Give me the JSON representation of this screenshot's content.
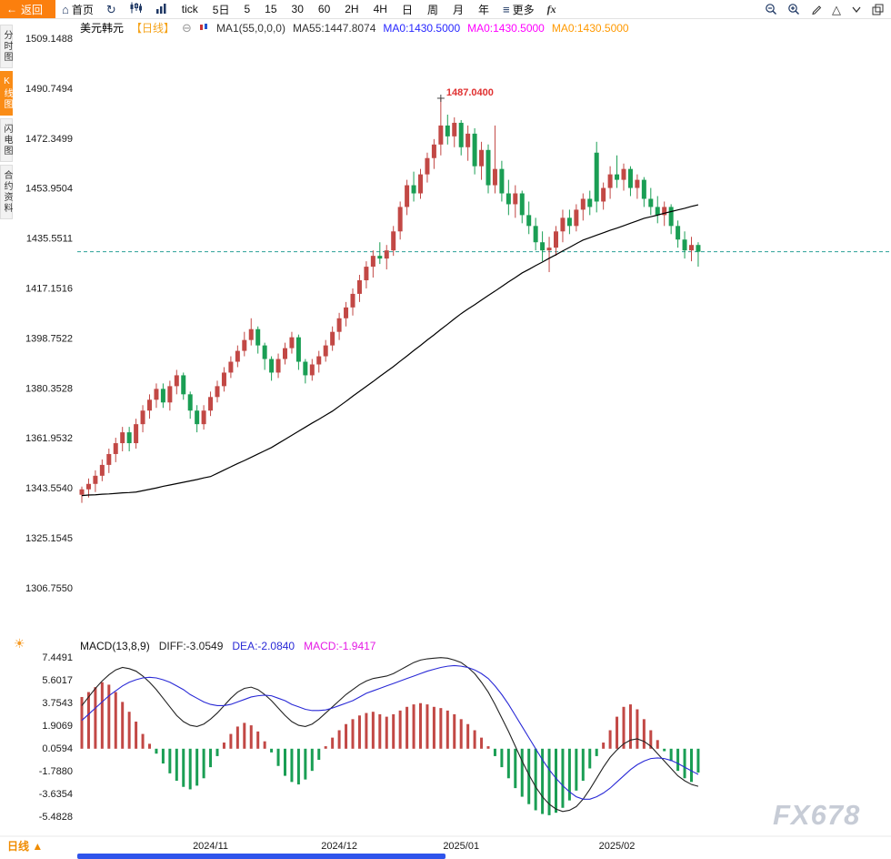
{
  "toolbar": {
    "back_label": "返回",
    "home_label": "首页",
    "periods": [
      "tick",
      "5日",
      "5",
      "15",
      "30",
      "60",
      "2H",
      "4H",
      "日",
      "周",
      "月",
      "年"
    ],
    "more_label": "更多",
    "fx_label": "fx"
  },
  "sidebar": {
    "items": [
      {
        "label": "分时图",
        "active": false
      },
      {
        "label": "K线图",
        "active": true
      },
      {
        "label": "闪电图",
        "active": false
      },
      {
        "label": "合约资料",
        "active": false
      }
    ]
  },
  "chart_header": {
    "symbol": "美元韩元",
    "period": "【日线】",
    "collapse_icon": "⊖",
    "ma_settings": "MA1(55,0,0,0)",
    "ma55": "MA55:1447.8074",
    "ma0_blue": "MA0:1430.5000",
    "ma0_magenta": "MA0:1430.5000",
    "ma0_orange": "MA0:1430.5000"
  },
  "macd_header": {
    "title": "MACD(13,8,9)",
    "diff": "DIFF:-3.0549",
    "dea": "DEA:-2.0840",
    "macd": "MACD:-1.9417"
  },
  "bottom": {
    "tab_label": "日线",
    "tab_arrow": "▲",
    "watermark": "FX678"
  },
  "chart_data": {
    "type": "candlestick+macd",
    "title": "美元韩元 日线 (USD/KRW Daily)",
    "price_axis_labels": [
      "1509.1488",
      "1490.7494",
      "1472.3499",
      "1453.9504",
      "1435.5511",
      "1417.1516",
      "1398.7522",
      "1380.3528",
      "1361.9532",
      "1343.5540",
      "1325.1545",
      "1306.7550"
    ],
    "macd_axis_labels": [
      "7.4491",
      "5.6017",
      "3.7543",
      "1.9069",
      "0.0594",
      "-1.7880",
      "-3.6354",
      "-5.4828"
    ],
    "x_axis_labels": [
      {
        "label": "2024/11",
        "index": 19
      },
      {
        "label": "2024/12",
        "index": 38
      },
      {
        "label": "2025/01",
        "index": 56
      },
      {
        "label": "2025/02",
        "index": 79
      }
    ],
    "last_price": 1430.5,
    "peak_annotation": {
      "text": "1487.0400",
      "price": 1487.04,
      "index": 53
    },
    "candles": [
      [
        1341,
        1344,
        1338,
        1343
      ],
      [
        1343,
        1347,
        1340,
        1345
      ],
      [
        1345,
        1350,
        1342,
        1348
      ],
      [
        1348,
        1354,
        1346,
        1352
      ],
      [
        1352,
        1358,
        1349,
        1356
      ],
      [
        1356,
        1362,
        1353,
        1360
      ],
      [
        1360,
        1366,
        1357,
        1364
      ],
      [
        1364,
        1366,
        1357,
        1360
      ],
      [
        1360,
        1369,
        1358,
        1367
      ],
      [
        1367,
        1374,
        1364,
        1372
      ],
      [
        1372,
        1378,
        1369,
        1376
      ],
      [
        1376,
        1382,
        1373,
        1380
      ],
      [
        1380,
        1382,
        1373,
        1375
      ],
      [
        1375,
        1383,
        1372,
        1381
      ],
      [
        1381,
        1387,
        1378,
        1385
      ],
      [
        1385,
        1386,
        1376,
        1378
      ],
      [
        1378,
        1379,
        1369,
        1372
      ],
      [
        1372,
        1374,
        1364,
        1367
      ],
      [
        1367,
        1374,
        1365,
        1372
      ],
      [
        1372,
        1379,
        1370,
        1377
      ],
      [
        1377,
        1383,
        1375,
        1381
      ],
      [
        1381,
        1388,
        1379,
        1386
      ],
      [
        1386,
        1392,
        1384,
        1390
      ],
      [
        1390,
        1396,
        1388,
        1394
      ],
      [
        1394,
        1401,
        1392,
        1398
      ],
      [
        1398,
        1406,
        1396,
        1402
      ],
      [
        1402,
        1403,
        1393,
        1396
      ],
      [
        1396,
        1397,
        1387,
        1391
      ],
      [
        1391,
        1392,
        1383,
        1386
      ],
      [
        1386,
        1393,
        1384,
        1391
      ],
      [
        1391,
        1397,
        1389,
        1395
      ],
      [
        1395,
        1401,
        1393,
        1399
      ],
      [
        1399,
        1400,
        1387,
        1390
      ],
      [
        1390,
        1391,
        1382,
        1385
      ],
      [
        1385,
        1391,
        1383,
        1389
      ],
      [
        1389,
        1394,
        1386,
        1392
      ],
      [
        1392,
        1398,
        1390,
        1396
      ],
      [
        1396,
        1403,
        1394,
        1401
      ],
      [
        1401,
        1408,
        1398,
        1406
      ],
      [
        1406,
        1412,
        1403,
        1410
      ],
      [
        1410,
        1417,
        1407,
        1415
      ],
      [
        1415,
        1422,
        1412,
        1420
      ],
      [
        1420,
        1427,
        1417,
        1425
      ],
      [
        1425,
        1431,
        1421,
        1429
      ],
      [
        1429,
        1434,
        1426,
        1428
      ],
      [
        1428,
        1433,
        1424,
        1431
      ],
      [
        1431,
        1440,
        1429,
        1438
      ],
      [
        1438,
        1449,
        1435,
        1447
      ],
      [
        1447,
        1457,
        1444,
        1455
      ],
      [
        1455,
        1460,
        1449,
        1452
      ],
      [
        1452,
        1461,
        1450,
        1459
      ],
      [
        1459,
        1467,
        1456,
        1465
      ],
      [
        1465,
        1472,
        1461,
        1470
      ],
      [
        1470,
        1487.04,
        1466,
        1477
      ],
      [
        1477,
        1481,
        1470,
        1473
      ],
      [
        1473,
        1480,
        1469,
        1478
      ],
      [
        1478,
        1479,
        1466,
        1469
      ],
      [
        1469,
        1477,
        1464,
        1474
      ],
      [
        1474,
        1476,
        1459,
        1462
      ],
      [
        1462,
        1471,
        1457,
        1468
      ],
      [
        1468,
        1470,
        1452,
        1455
      ],
      [
        1455,
        1477,
        1452,
        1461
      ],
      [
        1461,
        1464,
        1449,
        1452
      ],
      [
        1452,
        1457,
        1444,
        1448
      ],
      [
        1448,
        1455,
        1443,
        1452
      ],
      [
        1452,
        1453,
        1441,
        1444
      ],
      [
        1444,
        1449,
        1437,
        1440
      ],
      [
        1440,
        1443,
        1431,
        1434
      ],
      [
        1434,
        1438,
        1427,
        1431
      ],
      [
        1431,
        1436,
        1423,
        1432
      ],
      [
        1432,
        1440,
        1429,
        1438
      ],
      [
        1438,
        1446,
        1434,
        1443
      ],
      [
        1443,
        1446,
        1437,
        1440
      ],
      [
        1440,
        1448,
        1438,
        1446
      ],
      [
        1446,
        1452,
        1442,
        1450
      ],
      [
        1450,
        1453,
        1444,
        1447
      ],
      [
        1467,
        1471,
        1445,
        1449
      ],
      [
        1449,
        1456,
        1446,
        1454
      ],
      [
        1454,
        1462,
        1450,
        1459
      ],
      [
        1459,
        1466,
        1454,
        1457
      ],
      [
        1457,
        1463,
        1453,
        1461
      ],
      [
        1461,
        1462,
        1451,
        1454
      ],
      [
        1454,
        1459,
        1450,
        1457
      ],
      [
        1457,
        1458,
        1447,
        1450
      ],
      [
        1450,
        1454,
        1444,
        1447
      ],
      [
        1447,
        1451,
        1441,
        1444
      ],
      [
        1444,
        1449,
        1440,
        1447
      ],
      [
        1447,
        1448,
        1437,
        1440
      ],
      [
        1440,
        1442,
        1432,
        1435
      ],
      [
        1435,
        1438,
        1428,
        1431
      ],
      [
        1431,
        1436,
        1427,
        1433
      ],
      [
        1433,
        1434,
        1425,
        1430.5
      ]
    ],
    "ma55": [
      1340.7,
      1340.9,
      1341.0,
      1341.2,
      1341.3,
      1341.5,
      1341.7,
      1341.8,
      1342.0,
      1342.5,
      1343.0,
      1343.5,
      1344.1,
      1344.6,
      1345.1,
      1345.6,
      1346.1,
      1346.6,
      1347.2,
      1347.7,
      1348.9,
      1350.1,
      1351.3,
      1352.5,
      1353.6,
      1354.8,
      1356.0,
      1357.2,
      1358.4,
      1359.9,
      1361.4,
      1362.9,
      1364.4,
      1365.9,
      1367.4,
      1368.8,
      1370.3,
      1371.8,
      1373.6,
      1375.4,
      1377.3,
      1379.1,
      1380.9,
      1382.7,
      1384.6,
      1386.4,
      1388.2,
      1390.2,
      1392.1,
      1394.1,
      1396.0,
      1398.0,
      1399.9,
      1401.9,
      1403.8,
      1405.8,
      1407.7,
      1409.4,
      1411.0,
      1412.7,
      1414.4,
      1416.0,
      1417.7,
      1419.4,
      1421.0,
      1422.7,
      1424.0,
      1425.4,
      1426.7,
      1428.1,
      1429.4,
      1430.8,
      1432.1,
      1433.5,
      1434.8,
      1435.7,
      1436.6,
      1437.5,
      1438.4,
      1439.2,
      1440.1,
      1441.0,
      1441.9,
      1442.8,
      1443.4,
      1444.0,
      1444.7,
      1445.3,
      1445.9,
      1446.5,
      1447.2,
      1447.8
    ],
    "macd_hist": [
      4.2,
      4.6,
      5.0,
      5.4,
      5.2,
      4.6,
      3.8,
      3.0,
      2.2,
      1.2,
      0.4,
      -0.4,
      -1.2,
      -2.0,
      -2.6,
      -3.1,
      -3.3,
      -3.0,
      -2.4,
      -1.5,
      -0.6,
      0.5,
      1.2,
      1.8,
      2.1,
      1.9,
      1.4,
      0.6,
      -0.3,
      -1.4,
      -2.2,
      -2.7,
      -2.9,
      -2.5,
      -1.8,
      -0.9,
      0.2,
      0.9,
      1.5,
      2.0,
      2.4,
      2.7,
      2.9,
      3.0,
      2.8,
      2.6,
      2.8,
      3.1,
      3.4,
      3.6,
      3.7,
      3.6,
      3.4,
      3.3,
      3.1,
      2.8,
      2.4,
      2.0,
      1.5,
      0.9,
      0.2,
      -0.6,
      -1.5,
      -2.4,
      -3.2,
      -3.9,
      -4.5,
      -5.0,
      -5.3,
      -5.4,
      -5.2,
      -4.8,
      -4.2,
      -3.4,
      -2.6,
      -1.6,
      -0.6,
      0.5,
      1.5,
      2.6,
      3.4,
      3.6,
      3.2,
      2.4,
      1.5,
      0.7,
      -0.2,
      -1.0,
      -1.8,
      -2.4,
      -2.7,
      -1.9417
    ],
    "macd_diff": [
      3.5,
      4.2,
      4.9,
      5.5,
      6.0,
      6.4,
      6.6,
      6.5,
      6.3,
      5.9,
      5.4,
      4.8,
      4.1,
      3.4,
      2.7,
      2.2,
      1.9,
      1.8,
      2.0,
      2.4,
      2.9,
      3.5,
      4.1,
      4.6,
      4.9,
      5.0,
      4.8,
      4.4,
      3.9,
      3.3,
      2.7,
      2.2,
      1.9,
      1.8,
      2.0,
      2.4,
      2.9,
      3.4,
      3.9,
      4.4,
      4.8,
      5.2,
      5.5,
      5.7,
      5.8,
      5.9,
      6.1,
      6.4,
      6.7,
      7.0,
      7.2,
      7.3,
      7.35,
      7.4,
      7.35,
      7.2,
      7.0,
      6.6,
      6.1,
      5.4,
      4.6,
      3.6,
      2.5,
      1.4,
      0.2,
      -1.0,
      -2.1,
      -3.1,
      -3.9,
      -4.5,
      -4.9,
      -5.1,
      -5.0,
      -4.7,
      -4.1,
      -3.3,
      -2.4,
      -1.5,
      -0.7,
      -0.1,
      0.4,
      0.7,
      0.8,
      0.6,
      0.2,
      -0.4,
      -1.0,
      -1.6,
      -2.2,
      -2.6,
      -2.9,
      -3.0549
    ],
    "macd_dea": [
      2.3,
      2.8,
      3.3,
      3.8,
      4.3,
      4.7,
      5.1,
      5.4,
      5.6,
      5.75,
      5.8,
      5.75,
      5.6,
      5.4,
      5.1,
      4.8,
      4.4,
      4.1,
      3.8,
      3.6,
      3.5,
      3.5,
      3.6,
      3.8,
      4.0,
      4.2,
      4.3,
      4.35,
      4.3,
      4.1,
      3.9,
      3.6,
      3.4,
      3.2,
      3.1,
      3.1,
      3.15,
      3.3,
      3.5,
      3.7,
      3.9,
      4.2,
      4.5,
      4.7,
      4.9,
      5.1,
      5.3,
      5.5,
      5.7,
      5.9,
      6.1,
      6.3,
      6.45,
      6.6,
      6.7,
      6.75,
      6.7,
      6.6,
      6.4,
      6.1,
      5.7,
      5.1,
      4.4,
      3.6,
      2.7,
      1.8,
      0.9,
      0.0,
      -0.9,
      -1.7,
      -2.4,
      -3.0,
      -3.5,
      -3.9,
      -4.1,
      -4.1,
      -3.9,
      -3.6,
      -3.2,
      -2.7,
      -2.2,
      -1.7,
      -1.3,
      -1.0,
      -0.8,
      -0.75,
      -0.8,
      -0.95,
      -1.2,
      -1.5,
      -1.8,
      -2.084
    ],
    "colors": {
      "up": "#c24845",
      "down": "#1a9e54",
      "ma55": "#000000",
      "diff": "#222222",
      "dea": "#2929d6",
      "hist_up": "#c24845",
      "hist_down": "#1a9e54",
      "last_price_line": "#2aa198",
      "annotation": "#e03131"
    }
  }
}
